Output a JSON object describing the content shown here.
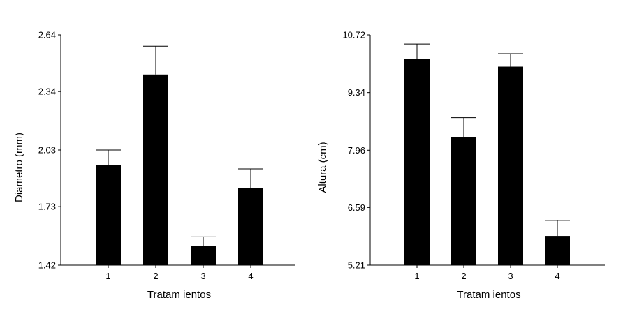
{
  "chart_data": [
    {
      "type": "bar",
      "categories": [
        "1",
        "2",
        "3",
        "4"
      ],
      "values": [
        1.95,
        2.43,
        1.52,
        1.83
      ],
      "errors": [
        0.08,
        0.15,
        0.05,
        0.1
      ],
      "xlabel": "Tratam ientos",
      "ylabel": "Diametro (mm)",
      "yticks": [
        "1.42",
        "1.73",
        "2.03",
        "2.34",
        "2.64"
      ],
      "ylim": [
        1.42,
        2.64
      ],
      "bar_color": "#000000",
      "grid": false
    },
    {
      "type": "bar",
      "categories": [
        "1",
        "2",
        "3",
        "4"
      ],
      "values": [
        10.15,
        8.27,
        9.96,
        5.91
      ],
      "errors": [
        0.35,
        0.47,
        0.31,
        0.37
      ],
      "xlabel": "Tratam ientos",
      "ylabel": "Altura (cm)",
      "yticks": [
        "5.21",
        "6.59",
        "7.96",
        "9.34",
        "10.72"
      ],
      "ylim": [
        5.21,
        10.72
      ],
      "bar_color": "#000000",
      "grid": false
    }
  ]
}
